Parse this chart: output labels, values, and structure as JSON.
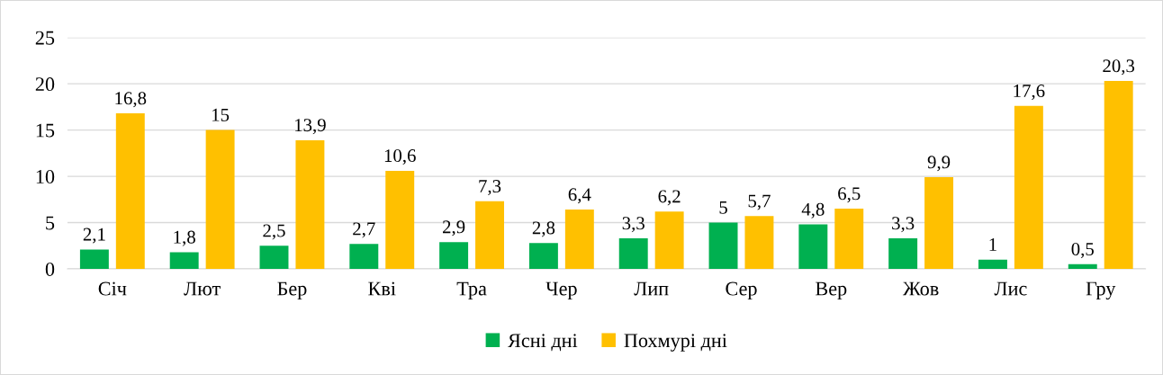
{
  "chart_data": {
    "type": "bar",
    "categories": [
      "Січ",
      "Лют",
      "Бер",
      "Кві",
      "Тра",
      "Чер",
      "Лип",
      "Сер",
      "Вер",
      "Жов",
      "Лис",
      "Гру"
    ],
    "series": [
      {
        "name": "Ясні дні",
        "color": "#00b050",
        "values": [
          2.1,
          1.8,
          2.5,
          2.7,
          2.9,
          2.8,
          3.3,
          5,
          4.8,
          3.3,
          1,
          0.5
        ],
        "value_labels": [
          "2,1",
          "1,8",
          "2,5",
          "2,7",
          "2,9",
          "2,8",
          "3,3",
          "5",
          "4,8",
          "3,3",
          "1",
          "0,5"
        ]
      },
      {
        "name": "Похмурі дні",
        "color": "#ffc000",
        "values": [
          16.8,
          15,
          13.9,
          10.6,
          7.3,
          6.4,
          6.2,
          5.7,
          6.5,
          9.9,
          17.6,
          20.3
        ],
        "value_labels": [
          "16,8",
          "15",
          "13,9",
          "10,6",
          "7,3",
          "6,4",
          "6,2",
          "5,7",
          "6,5",
          "9,9",
          "17,6",
          "20,3"
        ]
      }
    ],
    "ylim": [
      0,
      25
    ],
    "yticks": [
      0,
      5,
      10,
      15,
      20,
      25
    ],
    "grid": "y",
    "legend": "bottom"
  }
}
